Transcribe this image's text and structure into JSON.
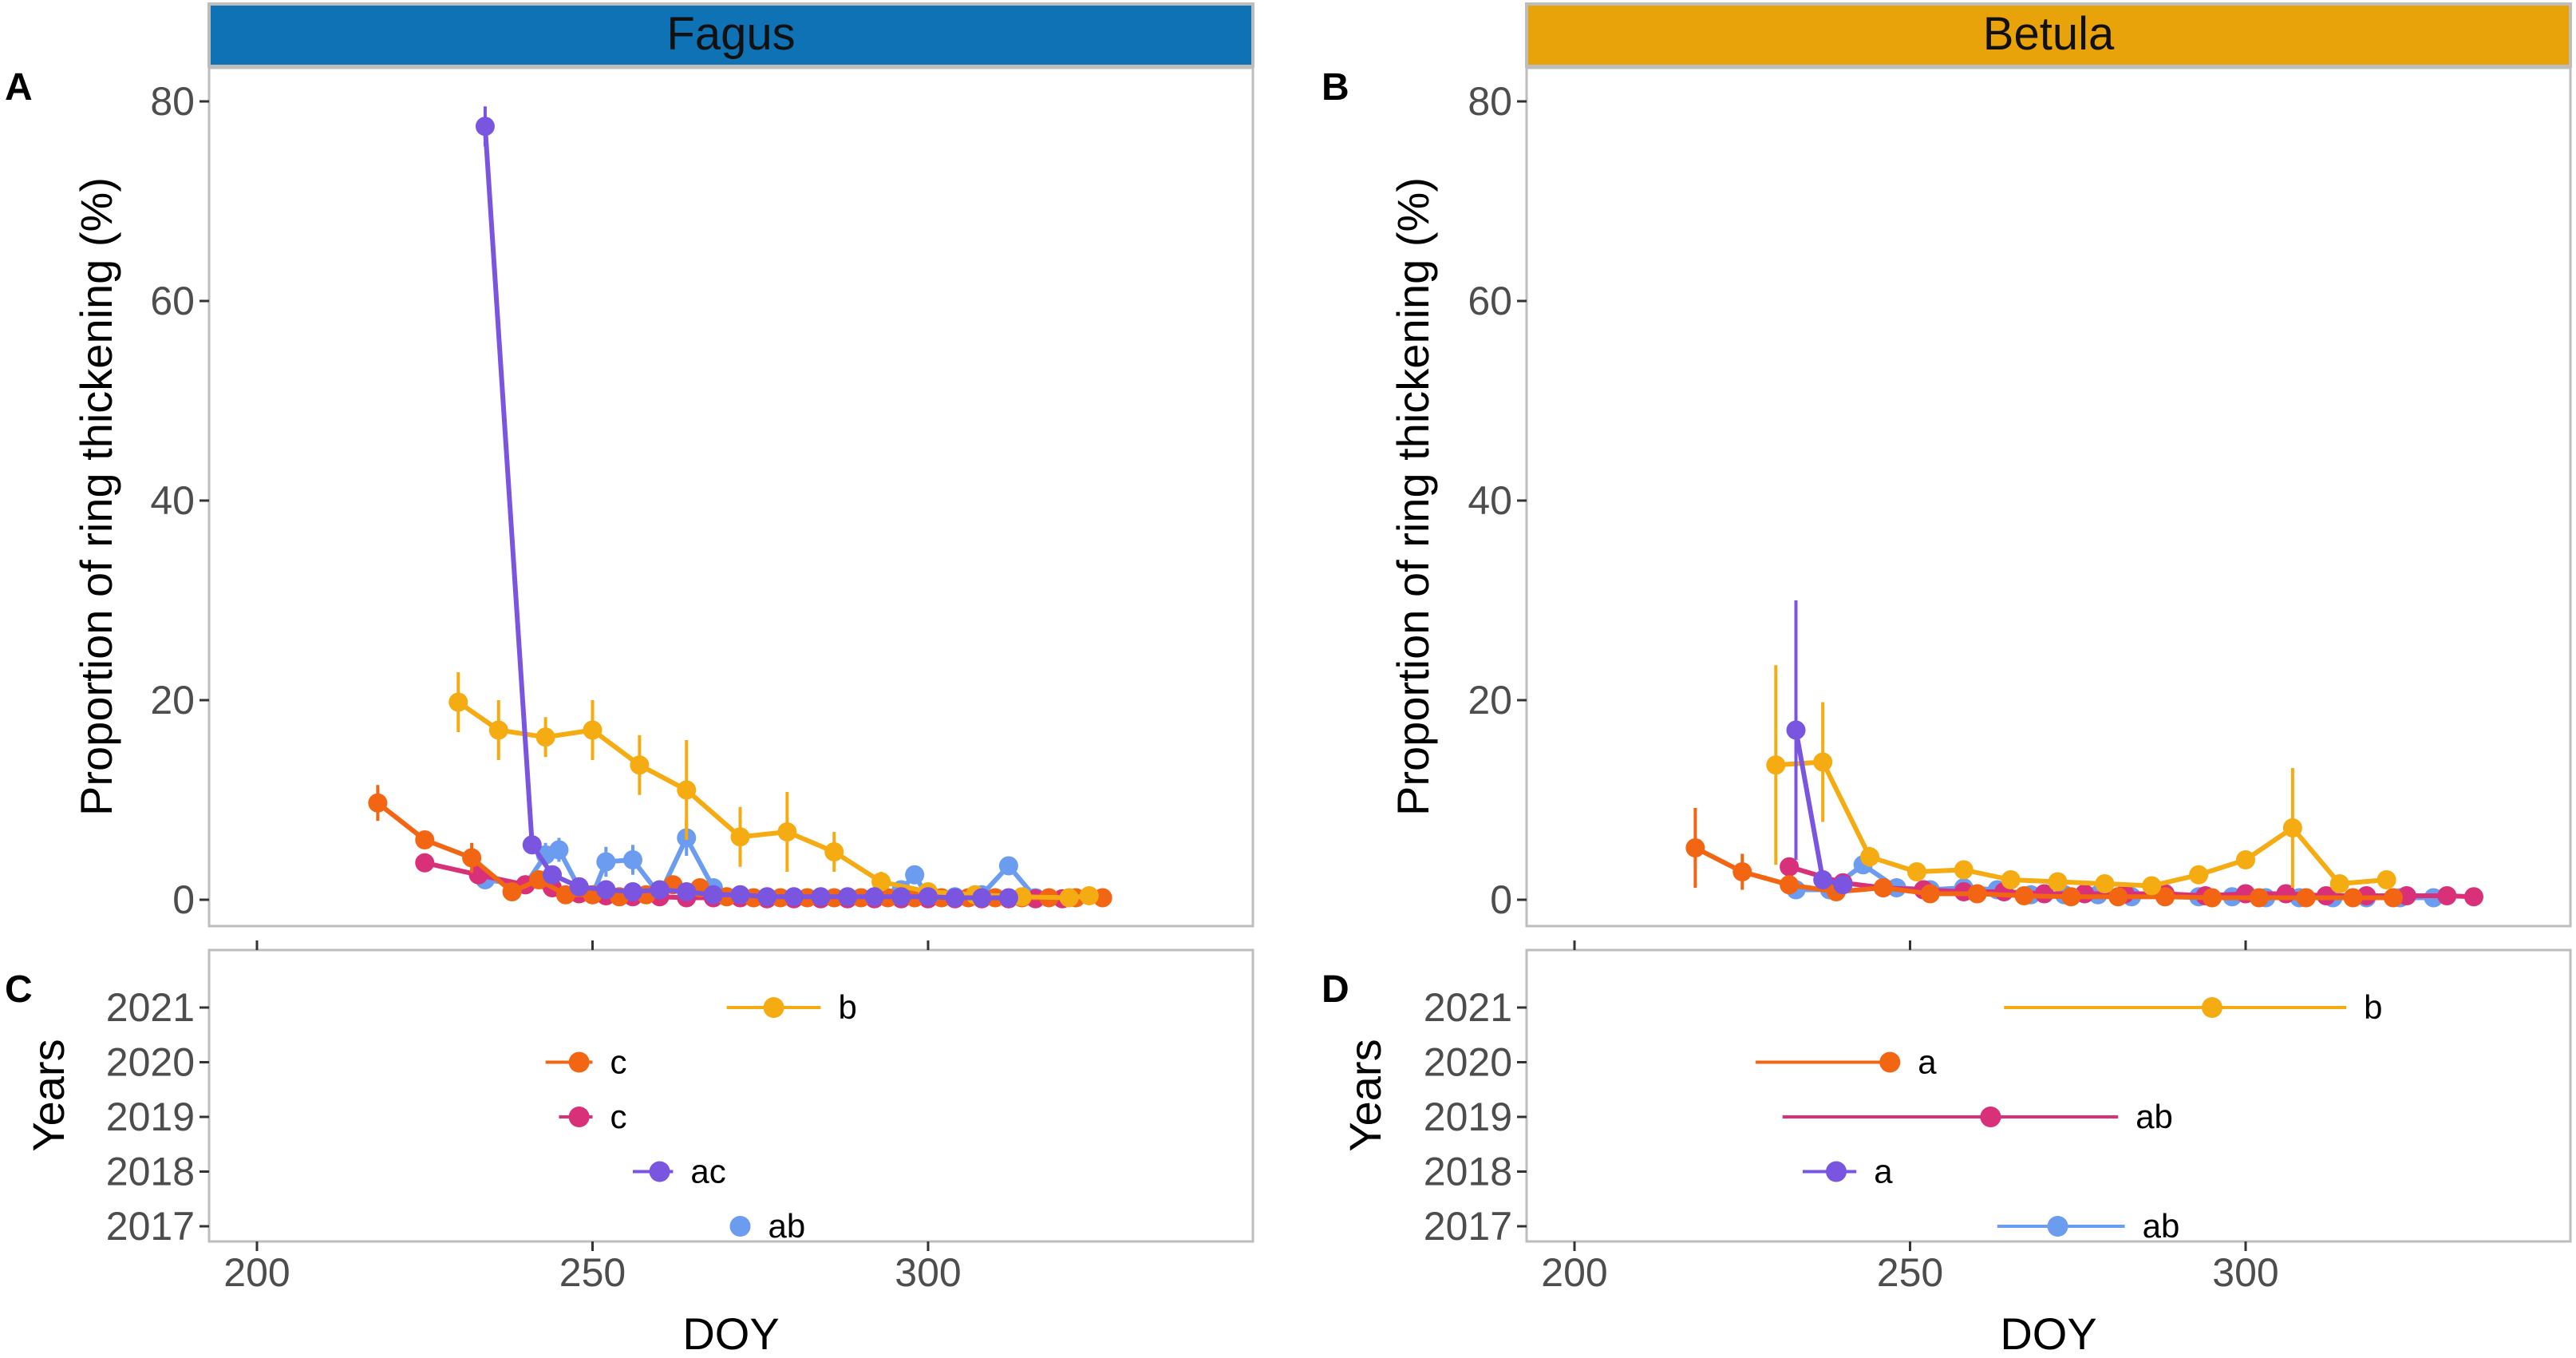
{
  "panels": {
    "A": {
      "letter": "A",
      "species": "Fagus"
    },
    "B": {
      "letter": "B",
      "species": "Betula"
    },
    "C": {
      "letter": "C"
    },
    "D": {
      "letter": "D"
    }
  },
  "axes": {
    "top_ylabel": "Proportion of ring thickening (%)",
    "bottom_ylabel": "Years",
    "xlabel": "DOY",
    "x_ticks": [
      "200",
      "250",
      "300"
    ],
    "y_ticks": [
      "0",
      "20",
      "40",
      "60",
      "80"
    ],
    "year_ticks": [
      "2017",
      "2018",
      "2019",
      "2020",
      "2021"
    ]
  },
  "colors": {
    "2017": "#6b9cf0",
    "2018": "#7a55e0",
    "2019": "#d9307a",
    "2020": "#f26513",
    "2021": "#f5ab12",
    "strip_fagus": "#0e72b5",
    "strip_betula": "#e8a20a"
  },
  "chart_data": [
    {
      "type": "line",
      "panel": "A",
      "title": "Fagus",
      "xlabel": "",
      "ylabel": "Proportion of ring thickening (%)",
      "xlim": [
        188,
        344
      ],
      "ylim": [
        -2,
        83
      ],
      "series": [
        {
          "name": "2017",
          "x": [
            234,
            240,
            243,
            245,
            248,
            250,
            252,
            256,
            260,
            264,
            268,
            272,
            276,
            280,
            284,
            288,
            292,
            296,
            298,
            300,
            304,
            308,
            312,
            316
          ],
          "y": [
            2,
            1.5,
            4.5,
            5,
            1.2,
            0.5,
            3.8,
            4,
            0.5,
            6.2,
            1.2,
            0.3,
            0.2,
            0.2,
            0.2,
            0.2,
            0.2,
            1,
            2.5,
            0.2,
            0.3,
            0.5,
            3.4,
            0.2
          ],
          "err": [
            0.6,
            0.5,
            1.2,
            1.2,
            0.5,
            0.3,
            1.5,
            1.5,
            0.5,
            1.8,
            0.8,
            0.3,
            0.2,
            0.2,
            0.2,
            0.2,
            0.2,
            0.5,
            0.8,
            0.2,
            0.3,
            0.3,
            0.8,
            0.2
          ]
        },
        {
          "name": "2018",
          "x": [
            234,
            241,
            244,
            248,
            252,
            256,
            260,
            264,
            268,
            272,
            276,
            280,
            284,
            288,
            292,
            296,
            300,
            304,
            308,
            312
          ],
          "y": [
            77.5,
            5.5,
            2.5,
            1.3,
            1,
            0.8,
            1,
            0.8,
            0.5,
            0.5,
            0.3,
            0.3,
            0.3,
            0.3,
            0.3,
            0.3,
            0.3,
            0.2,
            0.2,
            0.2
          ],
          "err": [
            2,
            0.8,
            0.5,
            0.3,
            0.3,
            0.3,
            0.3,
            0.3,
            0.2,
            0.2,
            0.2,
            0.2,
            0.2,
            0.2,
            0.2,
            0.2,
            0.2,
            0.2,
            0.2,
            0.2
          ]
        },
        {
          "name": "2019",
          "x": [
            225,
            233,
            240,
            244,
            248,
            252,
            256,
            260,
            264,
            268,
            272,
            276,
            280,
            284,
            288,
            292,
            296,
            300,
            304,
            308,
            312,
            316,
            320
          ],
          "y": [
            3.7,
            2.5,
            1.5,
            1.2,
            0.6,
            0.4,
            0.3,
            0.3,
            0.2,
            0.2,
            0.2,
            0.1,
            0.1,
            0.1,
            0.1,
            0.1,
            0.1,
            0.1,
            0.1,
            0.1,
            0.1,
            0.1,
            0.1
          ],
          "err": [
            0.5,
            0.5,
            0.4,
            0.3,
            0.3,
            0.2,
            0.2,
            0.2,
            0.2,
            0.2,
            0.2,
            0.1,
            0.1,
            0.1,
            0.1,
            0.1,
            0.1,
            0.1,
            0.1,
            0.1,
            0.1,
            0.1,
            0.1
          ]
        },
        {
          "name": "2020",
          "x": [
            218,
            225,
            232,
            238,
            242,
            246,
            250,
            254,
            258,
            262,
            266,
            270,
            274,
            278,
            282,
            286,
            290,
            294,
            298,
            302,
            306,
            310,
            314,
            318,
            322,
            326
          ],
          "y": [
            9.7,
            6,
            4.2,
            0.8,
            2,
            0.5,
            0.5,
            0.3,
            0.5,
            1.5,
            1.2,
            0.3,
            0.2,
            0.2,
            0.2,
            0.2,
            0.2,
            0.2,
            0.2,
            0.2,
            0.2,
            0.2,
            0.2,
            0.2,
            0.2,
            0.2
          ],
          "err": [
            1.8,
            0.8,
            1.5,
            0.5,
            0.8,
            0.3,
            0.3,
            0.2,
            0.3,
            0.5,
            0.5,
            0.2,
            0.2,
            0.2,
            0.2,
            0.2,
            0.2,
            0.2,
            0.2,
            0.2,
            0.2,
            0.2,
            0.2,
            0.2,
            0.2,
            0.2
          ]
        },
        {
          "name": "2021",
          "x": [
            230,
            236,
            243,
            250,
            257,
            264,
            272,
            279,
            286,
            293,
            300,
            307,
            314,
            321,
            324
          ],
          "y": [
            19.8,
            17,
            16.3,
            17,
            13.5,
            11,
            6.3,
            6.8,
            4.8,
            1.8,
            0.8,
            0.5,
            0.3,
            0.2,
            0.4
          ],
          "err": [
            3,
            3,
            2,
            3,
            3,
            5,
            3,
            4,
            2,
            1,
            0.5,
            0.5,
            0.3,
            0.2,
            0.3
          ]
        }
      ]
    },
    {
      "type": "line",
      "panel": "B",
      "title": "Betula",
      "xlabel": "",
      "ylabel": "Proportion of ring thickening (%)",
      "xlim": [
        188,
        344
      ],
      "ylim": [
        -2,
        83
      ],
      "series": [
        {
          "name": "2017",
          "x": [
            233,
            238,
            243,
            248,
            253,
            258,
            263,
            268,
            273,
            278,
            283,
            288,
            293,
            298,
            303,
            308,
            313,
            318,
            323,
            328
          ],
          "y": [
            1,
            1,
            3.5,
            1.2,
            1,
            1.2,
            1,
            0.5,
            0.5,
            0.5,
            0.3,
            0.3,
            0.3,
            0.3,
            0.2,
            0.2,
            0.2,
            0.2,
            0.2,
            0.2
          ],
          "err": [
            0.5,
            0.5,
            0.8,
            0.5,
            0.5,
            0.5,
            0.5,
            0.3,
            0.3,
            0.3,
            0.2,
            0.2,
            0.2,
            0.2,
            0.2,
            0.2,
            0.2,
            0.2,
            0.2,
            0.2
          ]
        },
        {
          "name": "2018",
          "x": [
            233,
            237,
            240
          ],
          "y": [
            17,
            2,
            1.5
          ],
          "err": [
            13,
            0.8,
            0.5
          ]
        },
        {
          "name": "2019",
          "x": [
            232,
            240,
            246,
            252,
            258,
            264,
            270,
            276,
            282,
            288,
            294,
            300,
            306,
            312,
            318,
            324,
            330,
            334
          ],
          "y": [
            3.3,
            1.7,
            1.2,
            1,
            0.8,
            0.8,
            0.6,
            0.6,
            0.6,
            0.6,
            0.4,
            0.6,
            0.6,
            0.4,
            0.4,
            0.4,
            0.4,
            0.3
          ],
          "err": [
            0.8,
            0.5,
            0.4,
            0.3,
            0.3,
            0.3,
            0.3,
            0.3,
            0.3,
            0.3,
            0.2,
            0.3,
            0.3,
            0.2,
            0.2,
            0.2,
            0.2,
            0.2
          ]
        },
        {
          "name": "2020",
          "x": [
            218,
            225,
            232,
            239,
            246,
            253,
            260,
            267,
            274,
            281,
            288,
            295,
            302,
            309,
            316,
            322
          ],
          "y": [
            5.2,
            2.8,
            1.5,
            0.8,
            1.2,
            0.6,
            0.6,
            0.4,
            0.3,
            0.3,
            0.3,
            0.2,
            0.2,
            0.2,
            0.2,
            0.2
          ],
          "err": [
            4,
            1.8,
            0.8,
            0.4,
            0.5,
            0.3,
            0.3,
            0.2,
            0.2,
            0.2,
            0.2,
            0.2,
            0.2,
            0.2,
            0.2,
            0.2
          ],
          "note": "trailing zeros"
        },
        {
          "name": "2021",
          "x": [
            230,
            237,
            244,
            251,
            258,
            265,
            272,
            279,
            286,
            293,
            300,
            307,
            314,
            321
          ],
          "y": [
            13.5,
            13.8,
            4.3,
            2.8,
            3,
            2,
            1.8,
            1.6,
            1.4,
            2.5,
            4,
            7.2,
            1.6,
            2
          ],
          "err": [
            10,
            6,
            1,
            0.6,
            0.6,
            0.5,
            0.5,
            0.5,
            0.5,
            0.6,
            0.8,
            6,
            0.6,
            0.6
          ]
        }
      ]
    },
    {
      "type": "scatter",
      "panel": "C",
      "xlabel": "DOY",
      "ylabel": "Years",
      "xlim": [
        188,
        344
      ],
      "categories": [
        "2017",
        "2018",
        "2019",
        "2020",
        "2021"
      ],
      "points": [
        {
          "year": "2017",
          "mean": 272,
          "low": 272,
          "high": 272,
          "letters": "ab"
        },
        {
          "year": "2018",
          "mean": 260,
          "low": 256,
          "high": 262,
          "letters": "ac"
        },
        {
          "year": "2019",
          "mean": 248,
          "low": 245,
          "high": 250,
          "letters": "c"
        },
        {
          "year": "2020",
          "mean": 248,
          "low": 243,
          "high": 250,
          "letters": "c"
        },
        {
          "year": "2021",
          "mean": 277,
          "low": 270,
          "high": 284,
          "letters": "b"
        }
      ]
    },
    {
      "type": "scatter",
      "panel": "D",
      "xlabel": "DOY",
      "ylabel": "Years",
      "xlim": [
        188,
        344
      ],
      "categories": [
        "2017",
        "2018",
        "2019",
        "2020",
        "2021"
      ],
      "points": [
        {
          "year": "2017",
          "mean": 272,
          "low": 263,
          "high": 282,
          "letters": "ab"
        },
        {
          "year": "2018",
          "mean": 239,
          "low": 234,
          "high": 242,
          "letters": "a"
        },
        {
          "year": "2019",
          "mean": 262,
          "low": 231,
          "high": 281,
          "letters": "ab"
        },
        {
          "year": "2020",
          "mean": 247,
          "low": 227,
          "high": 248,
          "letters": "a"
        },
        {
          "year": "2021",
          "mean": 295,
          "low": 264,
          "high": 315,
          "letters": "b"
        }
      ]
    }
  ]
}
